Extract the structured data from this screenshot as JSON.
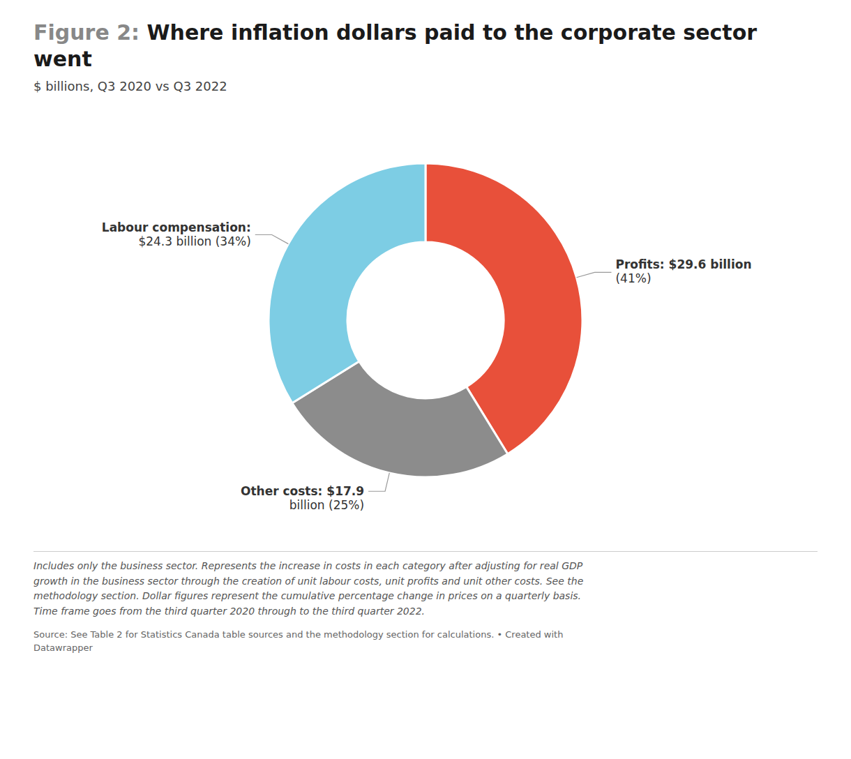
{
  "chart_data": {
    "type": "pie",
    "title_prefix": "Figure 2:",
    "title": "Where inflation dollars paid to the corporate sector went",
    "subtitle": "$ billions, Q3 2020 vs Q3 2022",
    "categories": [
      "Profits",
      "Other costs",
      "Labour compensation"
    ],
    "values": [
      29.6,
      17.9,
      24.3
    ],
    "colors": [
      "#E8503A",
      "#8C8C8C",
      "#7DCDE4"
    ],
    "value_labels": [
      "Profits: $29.6 billion\n(41%)",
      "Other costs: $17.9\nbillion (25%)",
      "Labour compensation:\n$24.3 billion (34%)"
    ],
    "data_labels": true,
    "footnote": "Includes only the business sector. Represents the increase in costs in each category after adjusting for real GDP\ngrowth in the business sector through the creation of unit labour costs, unit profits and unit other costs. See the\nmethodology section. Dollar figures represent the cumulative percentage change in prices on a quarterly basis.\nTime frame goes from the third quarter 2020 through to the third quarter 2022.",
    "source": "Source: See Table 2 for Statistics Canada table sources and the methodology section for calculations. • Created with\nDatawrapper"
  }
}
